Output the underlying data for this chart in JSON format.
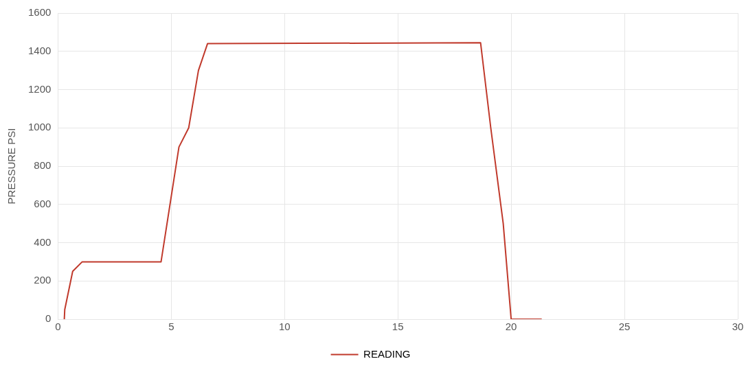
{
  "chart_data": {
    "type": "line",
    "ylabel": "PRESSURE PSI",
    "series": [
      {
        "name": "READING",
        "color": "#c0392b",
        "x": [
          0.28,
          0.3,
          0.65,
          1.07,
          4.55,
          5.34,
          5.77,
          6.2,
          6.6,
          18.65,
          19.1,
          19.65,
          20.0,
          21.35
        ],
        "values": [
          0,
          50,
          250,
          300,
          300,
          900,
          1000,
          1300,
          1440,
          1445,
          1000,
          500,
          0,
          0
        ]
      }
    ],
    "xlim": [
      0,
      30
    ],
    "xticks": [
      0,
      5,
      10,
      15,
      20,
      25,
      30
    ],
    "ylim": [
      0,
      1600
    ],
    "yticks": [
      0,
      200,
      400,
      600,
      800,
      1000,
      1200,
      1400,
      1600
    ],
    "grid": true,
    "legend": "bottom",
    "marker": "none",
    "line_style": "solid"
  }
}
